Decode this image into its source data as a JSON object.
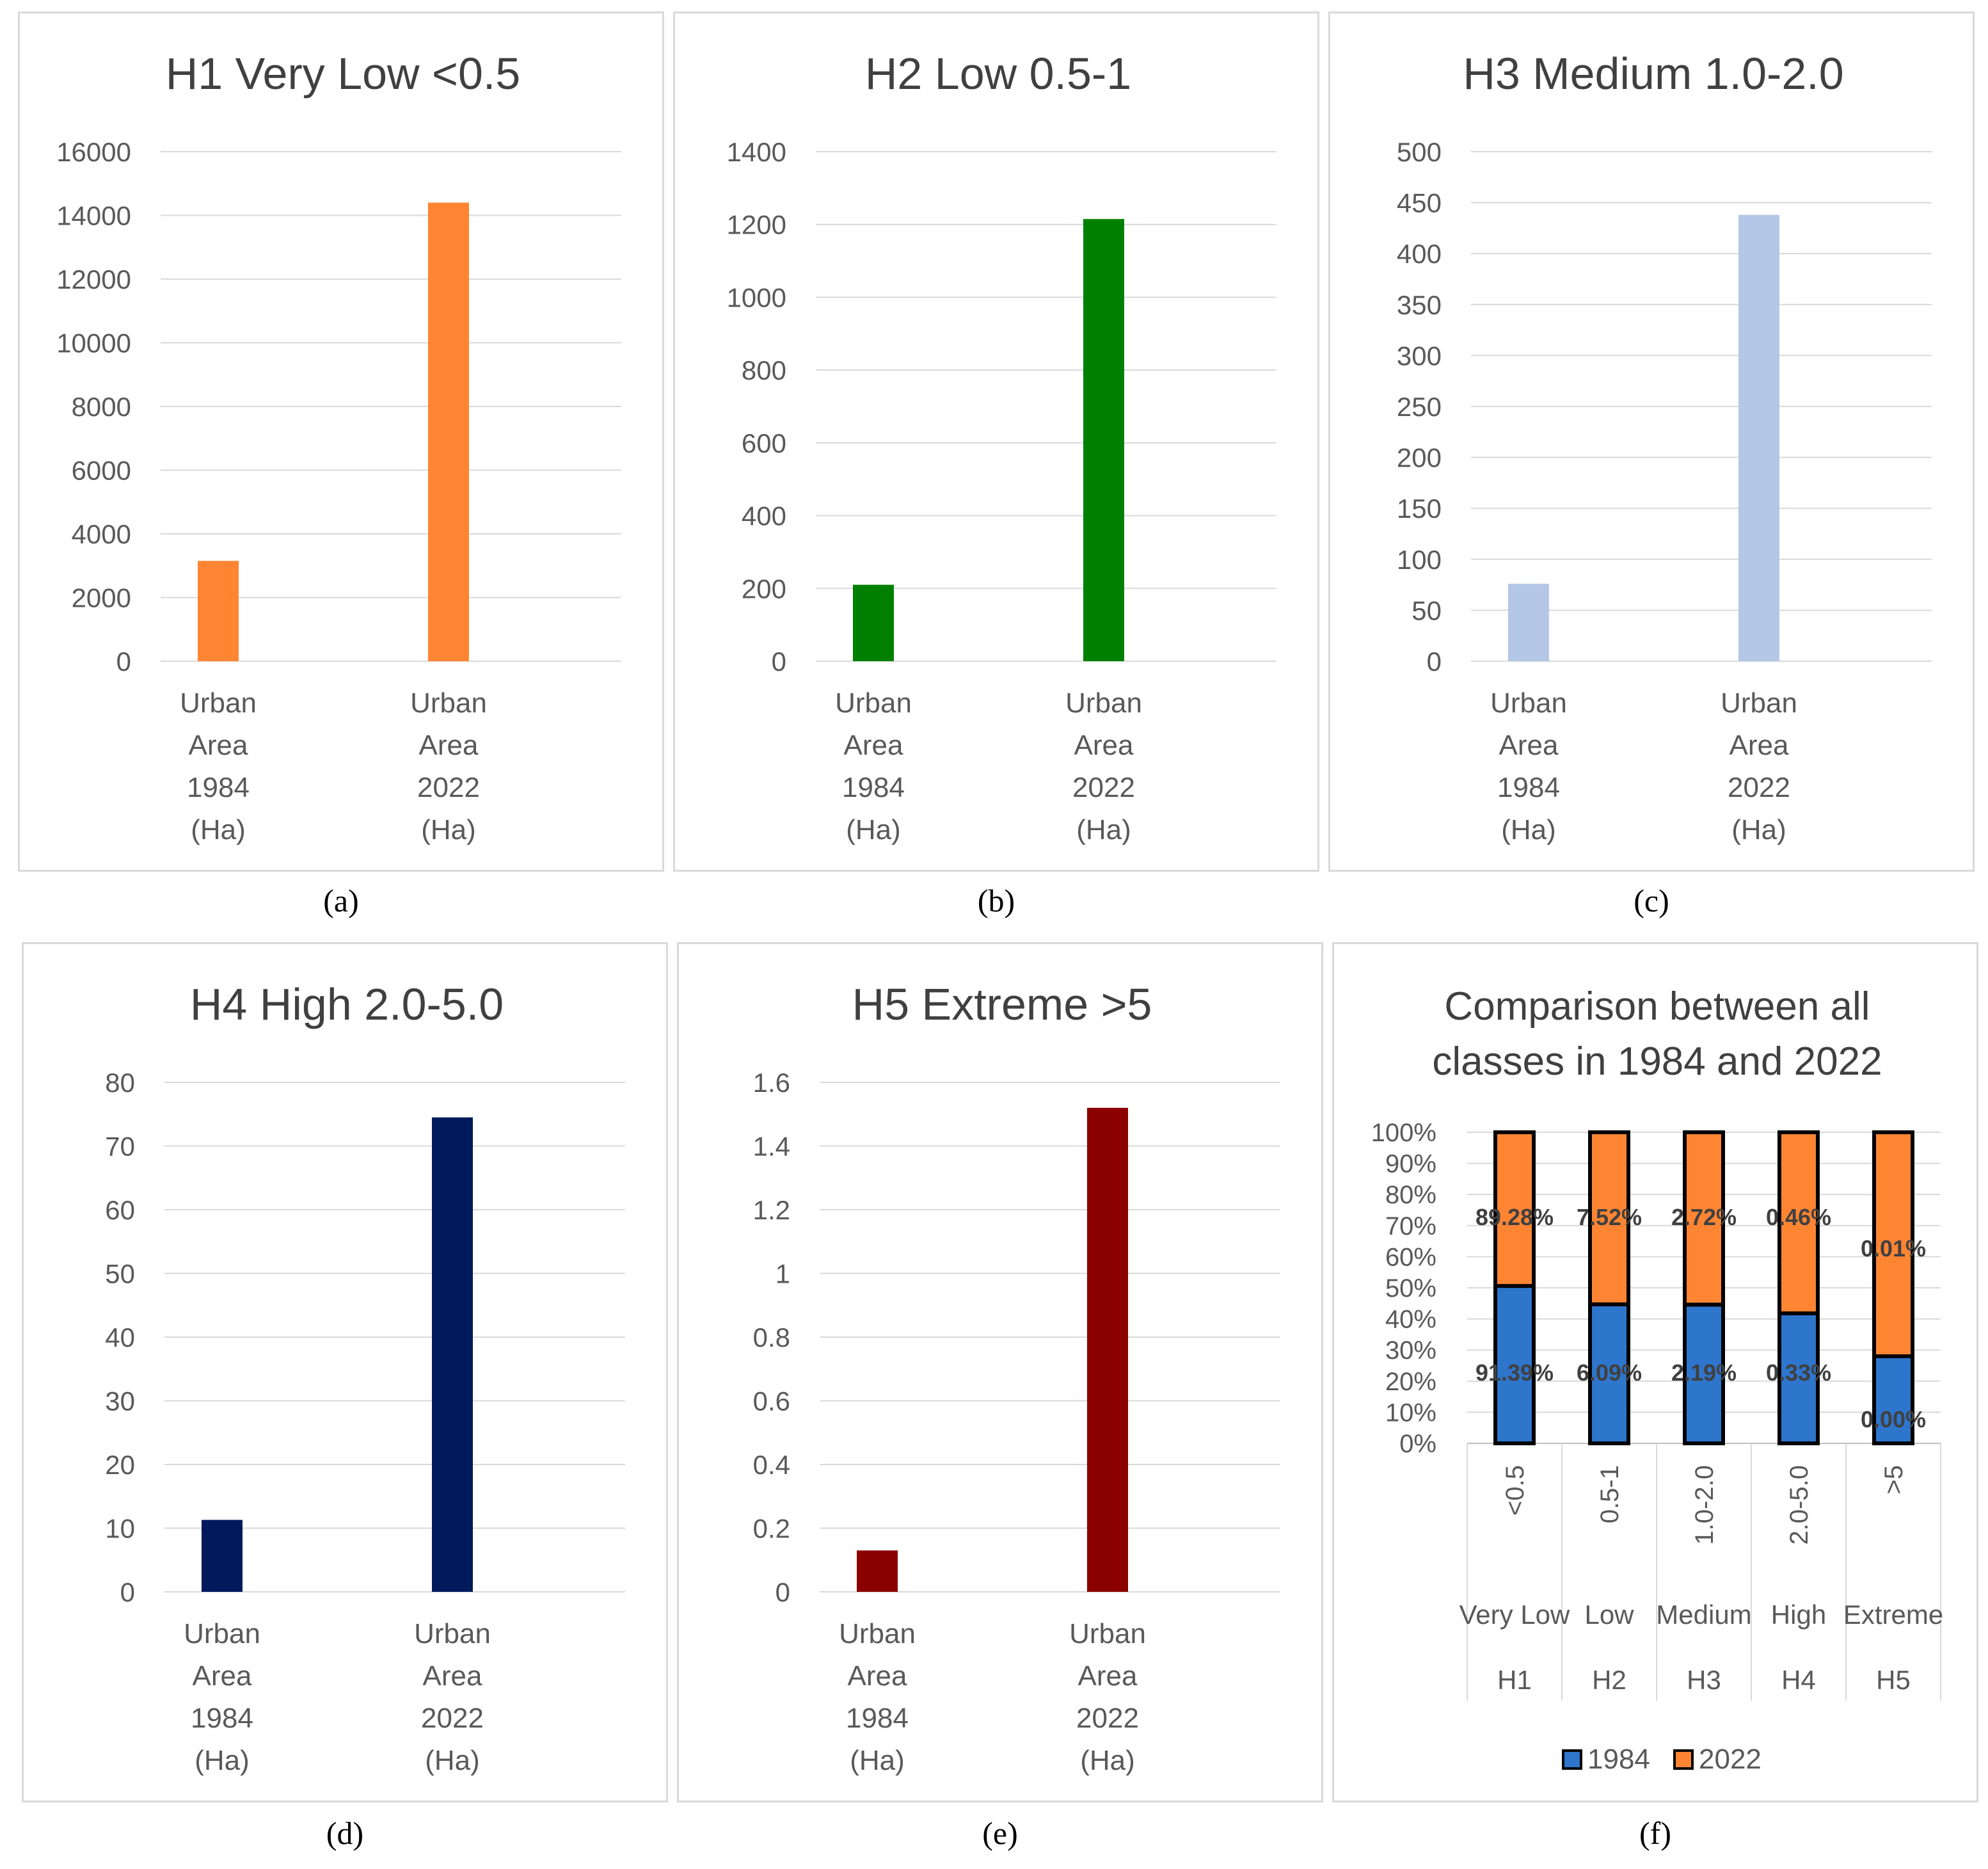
{
  "chart_data": [
    {
      "id": "a",
      "type": "bar",
      "title": "H1 Very Low <0.5",
      "categories": [
        [
          "Urban",
          "Area",
          "1984",
          "(Ha)"
        ],
        [
          "Urban",
          "Area",
          "2022",
          "(Ha)"
        ]
      ],
      "values": [
        3150,
        14400
      ],
      "ylim": [
        0,
        16000
      ],
      "yticks": [
        "0",
        "2000",
        "4000",
        "6000",
        "8000",
        "10000",
        "12000",
        "14000",
        "16000"
      ],
      "color": "#ff8533",
      "caption": "(a)"
    },
    {
      "id": "b",
      "type": "bar",
      "title": "H2 Low 0.5-1",
      "categories": [
        [
          "Urban",
          "Area",
          "1984",
          "(Ha)"
        ],
        [
          "Urban",
          "Area",
          "2022",
          "(Ha)"
        ]
      ],
      "values": [
        210,
        1215
      ],
      "ylim": [
        0,
        1400
      ],
      "yticks": [
        "0",
        "200",
        "400",
        "600",
        "800",
        "1000",
        "1200",
        "1400"
      ],
      "color": "#008000",
      "caption": "(b)"
    },
    {
      "id": "c",
      "type": "bar",
      "title": "H3 Medium 1.0-2.0",
      "categories": [
        [
          "Urban",
          "Area",
          "1984",
          "(Ha)"
        ],
        [
          "Urban",
          "Area",
          "2022",
          "(Ha)"
        ]
      ],
      "values": [
        76,
        438
      ],
      "ylim": [
        0,
        500
      ],
      "yticks": [
        "0",
        "50",
        "100",
        "150",
        "200",
        "250",
        "300",
        "350",
        "400",
        "450",
        "500"
      ],
      "color": "#b4c7e7",
      "caption": "(c)"
    },
    {
      "id": "d",
      "type": "bar",
      "title": "H4 High 2.0-5.0",
      "categories": [
        [
          "Urban",
          "Area",
          "1984",
          "(Ha)"
        ],
        [
          "Urban",
          "Area",
          "2022",
          "(Ha)"
        ]
      ],
      "values": [
        11.3,
        74.5
      ],
      "ylim": [
        0,
        80
      ],
      "yticks": [
        "0",
        "10",
        "20",
        "30",
        "40",
        "50",
        "60",
        "70",
        "80"
      ],
      "color": "#001a5c",
      "caption": "(d)"
    },
    {
      "id": "e",
      "type": "bar",
      "title": "H5 Extreme >5",
      "categories": [
        [
          "Urban",
          "Area",
          "1984",
          "(Ha)"
        ],
        [
          "Urban",
          "Area",
          "2022",
          "(Ha)"
        ]
      ],
      "values": [
        0.13,
        1.52
      ],
      "ylim": [
        0,
        1.6
      ],
      "yticks": [
        "0",
        "0.2",
        "0.4",
        "0.6",
        "0.8",
        "1",
        "1.2",
        "1.4",
        "1.6"
      ],
      "color": "#8b0000",
      "caption": "(e)"
    },
    {
      "id": "f",
      "type": "stacked-bar-100",
      "title_lines": [
        "Comparison between all",
        "classes in 1984 and 2022"
      ],
      "categories": [
        "<0.5",
        "0.5-1",
        "1.0-2.0",
        "2.0-5.0",
        ">5"
      ],
      "class_names": [
        "Very Low",
        "Low",
        "Medium",
        "High",
        "Extreme"
      ],
      "class_codes": [
        "H1",
        "H2",
        "H3",
        "H4",
        "H5"
      ],
      "yticks": [
        "0%",
        "10%",
        "20%",
        "30%",
        "40%",
        "50%",
        "60%",
        "70%",
        "80%",
        "90%",
        "100%"
      ],
      "series": [
        {
          "name": "1984",
          "color": "#2e75cc",
          "share": [
            50.6,
            44.7,
            44.6,
            41.8,
            28.0
          ],
          "labels": [
            "91.39%",
            "6.09%",
            "2.19%",
            "0.33%",
            "0.00%"
          ]
        },
        {
          "name": "2022",
          "color": "#ff8533",
          "share": [
            49.4,
            55.3,
            55.4,
            58.2,
            72.0
          ],
          "labels": [
            "89.28%",
            "7.52%",
            "2.72%",
            "0.46%",
            "0.01%"
          ]
        }
      ],
      "caption": "(f)"
    }
  ]
}
